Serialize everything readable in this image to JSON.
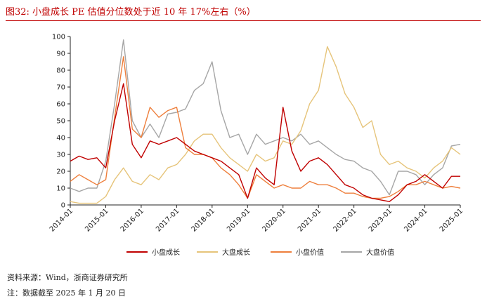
{
  "title": "图32:   小盘成长 PE 估值分位数处于近 10 年 17%左右（%）",
  "source": "资料来源：Wind，浙商证券研究所",
  "note": "注：数据截至 2025 年 1 月 20 日",
  "colors": {
    "small_growth": "#c00000",
    "large_growth": "#e6c47a",
    "small_value": "#ee7f3c",
    "large_value": "#a6a6a6",
    "title": "#c00000"
  },
  "chart_data": {
    "type": "line",
    "title": "",
    "xlabel": "",
    "ylabel": "",
    "ylim": [
      0,
      100
    ],
    "yticks": [
      0,
      10,
      20,
      30,
      40,
      50,
      60,
      70,
      80,
      90,
      100
    ],
    "x_tick_labels": [
      "2014-01",
      "2015-01",
      "2016-01",
      "2017-01",
      "2018-01",
      "2019-01",
      "2020-01",
      "2021-01",
      "2022-01",
      "2023-01",
      "2024-01",
      "2025-01"
    ],
    "x": [
      "2014-01",
      "2014-04",
      "2014-07",
      "2014-10",
      "2015-01",
      "2015-04",
      "2015-07",
      "2015-10",
      "2016-01",
      "2016-04",
      "2016-07",
      "2016-10",
      "2017-01",
      "2017-04",
      "2017-07",
      "2017-10",
      "2018-01",
      "2018-04",
      "2018-07",
      "2018-10",
      "2019-01",
      "2019-04",
      "2019-07",
      "2019-10",
      "2020-01",
      "2020-04",
      "2020-07",
      "2020-10",
      "2021-01",
      "2021-04",
      "2021-07",
      "2021-10",
      "2022-01",
      "2022-04",
      "2022-07",
      "2022-10",
      "2023-01",
      "2023-04",
      "2023-07",
      "2023-10",
      "2024-01",
      "2024-04",
      "2024-07",
      "2024-10",
      "2025-01"
    ],
    "legend_position": "bottom",
    "grid": false,
    "series": [
      {
        "name": "小盘成长",
        "color_key": "small_growth",
        "values": [
          26,
          29,
          27,
          28,
          22,
          50,
          72,
          36,
          28,
          38,
          36,
          38,
          40,
          36,
          32,
          30,
          28,
          26,
          22,
          18,
          4,
          22,
          16,
          12,
          58,
          32,
          20,
          26,
          28,
          24,
          18,
          12,
          10,
          6,
          4,
          3,
          2,
          6,
          12,
          14,
          18,
          14,
          10,
          17,
          17
        ]
      },
      {
        "name": "大盘成长",
        "color_key": "large_growth",
        "values": [
          2,
          1,
          1,
          1,
          5,
          15,
          22,
          14,
          12,
          18,
          15,
          22,
          24,
          30,
          38,
          42,
          42,
          34,
          28,
          24,
          20,
          30,
          26,
          28,
          38,
          36,
          44,
          60,
          68,
          94,
          82,
          66,
          58,
          46,
          50,
          30,
          24,
          26,
          22,
          20,
          16,
          22,
          26,
          34,
          30
        ]
      },
      {
        "name": "小盘价值",
        "color_key": "small_value",
        "values": [
          14,
          18,
          15,
          12,
          15,
          52,
          88,
          45,
          40,
          58,
          52,
          56,
          58,
          34,
          30,
          30,
          28,
          22,
          18,
          12,
          4,
          18,
          14,
          10,
          12,
          10,
          10,
          14,
          12,
          12,
          10,
          7,
          7,
          5,
          4,
          4,
          5,
          8,
          12,
          12,
          14,
          12,
          10,
          11,
          10
        ]
      },
      {
        "name": "大盘价值",
        "color_key": "large_value",
        "values": [
          10,
          8,
          10,
          10,
          26,
          60,
          98,
          50,
          40,
          48,
          40,
          54,
          55,
          57,
          68,
          72,
          85,
          56,
          40,
          42,
          30,
          42,
          36,
          38,
          40,
          38,
          42,
          36,
          38,
          34,
          30,
          27,
          26,
          22,
          20,
          14,
          6,
          20,
          20,
          18,
          12,
          18,
          22,
          35,
          36
        ]
      }
    ]
  }
}
